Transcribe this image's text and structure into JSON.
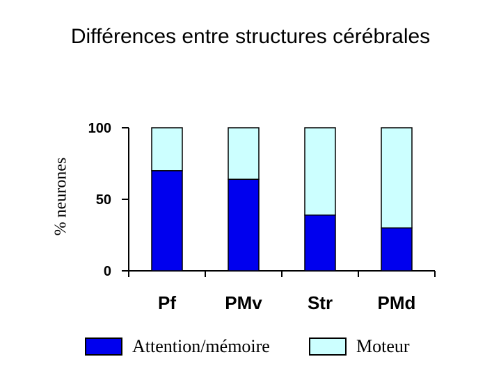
{
  "title": "Différences entre structures cérébrales",
  "chart_data": {
    "type": "bar",
    "stacked": true,
    "categories": [
      "Pf",
      "PMv",
      "Str",
      "PMd"
    ],
    "series": [
      {
        "name": "Attention/mémoire",
        "color": "#0000ee",
        "values": [
          70,
          64,
          39,
          30
        ]
      },
      {
        "name": "Moteur",
        "color": "#ccffff",
        "values": [
          30,
          36,
          61,
          70
        ]
      }
    ],
    "ylabel": "% neurones",
    "ylim": [
      0,
      100
    ],
    "yticks": [
      0,
      50,
      100
    ],
    "grid": false,
    "legend_position": "bottom"
  }
}
